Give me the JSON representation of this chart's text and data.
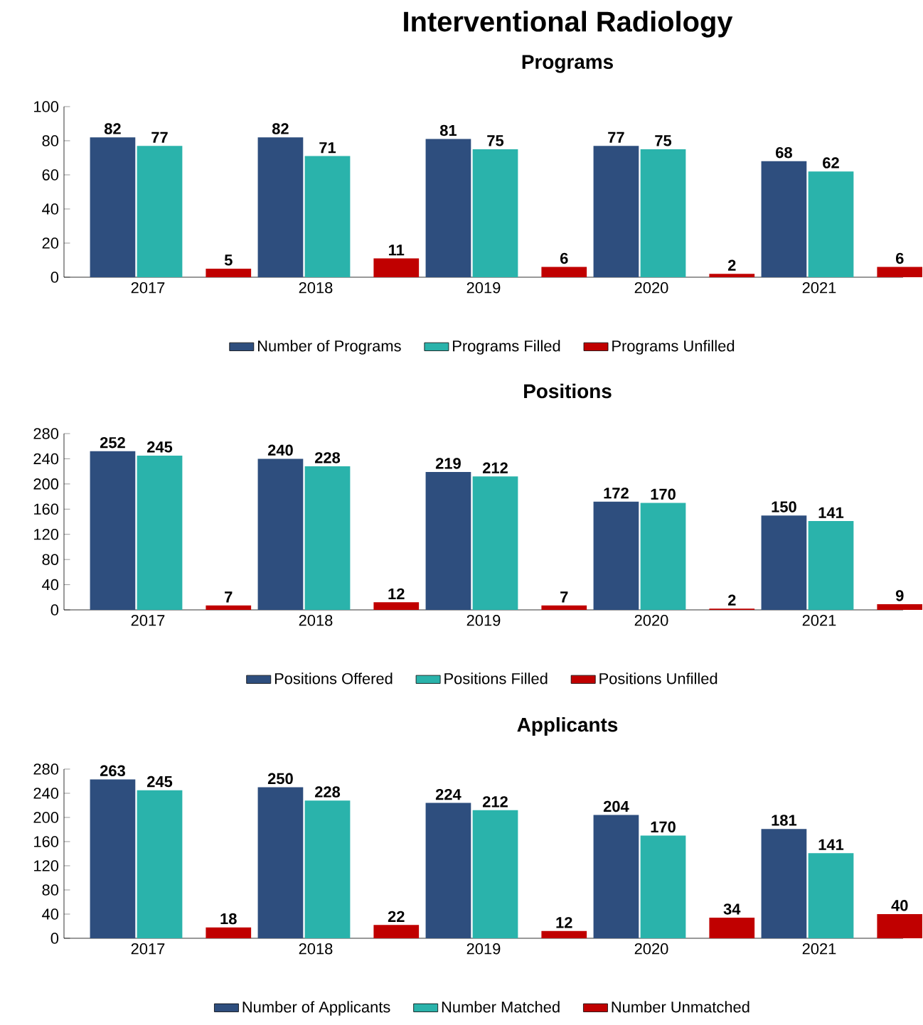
{
  "chart_data": [
    {
      "type": "bar",
      "title": "Interventional Radiology",
      "subtitle": "Programs",
      "categories": [
        "2017",
        "2018",
        "2019",
        "2020",
        "2021"
      ],
      "series": [
        {
          "name": "Number of Programs",
          "color": "#2e4e7e",
          "values": [
            82,
            82,
            81,
            77,
            68
          ]
        },
        {
          "name": "Programs Filled",
          "color": "#2ab3ab",
          "values": [
            77,
            71,
            75,
            75,
            62
          ]
        },
        {
          "name": "Programs Unfilled",
          "color": "#c00000",
          "values": [
            5,
            11,
            6,
            2,
            6
          ]
        }
      ],
      "ylim": [
        0,
        100
      ],
      "yticks": [
        0,
        20,
        40,
        60,
        80,
        100
      ],
      "legend": "bottom",
      "data_labels": true
    },
    {
      "type": "bar",
      "title": "Positions",
      "categories": [
        "2017",
        "2018",
        "2019",
        "2020",
        "2021"
      ],
      "series": [
        {
          "name": "Positions Offered",
          "color": "#2e4e7e",
          "values": [
            252,
            240,
            219,
            172,
            150
          ]
        },
        {
          "name": "Positions Filled",
          "color": "#2ab3ab",
          "values": [
            245,
            228,
            212,
            170,
            141
          ]
        },
        {
          "name": "Positions Unfilled",
          "color": "#c00000",
          "values": [
            7,
            12,
            7,
            2,
            9
          ]
        }
      ],
      "ylim": [
        0,
        280
      ],
      "yticks": [
        0,
        40,
        80,
        120,
        160,
        200,
        240,
        280
      ],
      "legend": "bottom",
      "data_labels": true
    },
    {
      "type": "bar",
      "title": "Applicants",
      "categories": [
        "2017",
        "2018",
        "2019",
        "2020",
        "2021"
      ],
      "series": [
        {
          "name": "Number of Applicants",
          "color": "#2e4e7e",
          "values": [
            263,
            250,
            224,
            204,
            181
          ]
        },
        {
          "name": "Number Matched",
          "color": "#2ab3ab",
          "values": [
            245,
            228,
            212,
            170,
            141
          ]
        },
        {
          "name": "Number Unmatched",
          "color": "#c00000",
          "values": [
            18,
            22,
            12,
            34,
            40
          ]
        }
      ],
      "ylim": [
        0,
        280
      ],
      "yticks": [
        0,
        40,
        80,
        120,
        160,
        200,
        240,
        280
      ],
      "legend": "bottom",
      "data_labels": true
    }
  ]
}
